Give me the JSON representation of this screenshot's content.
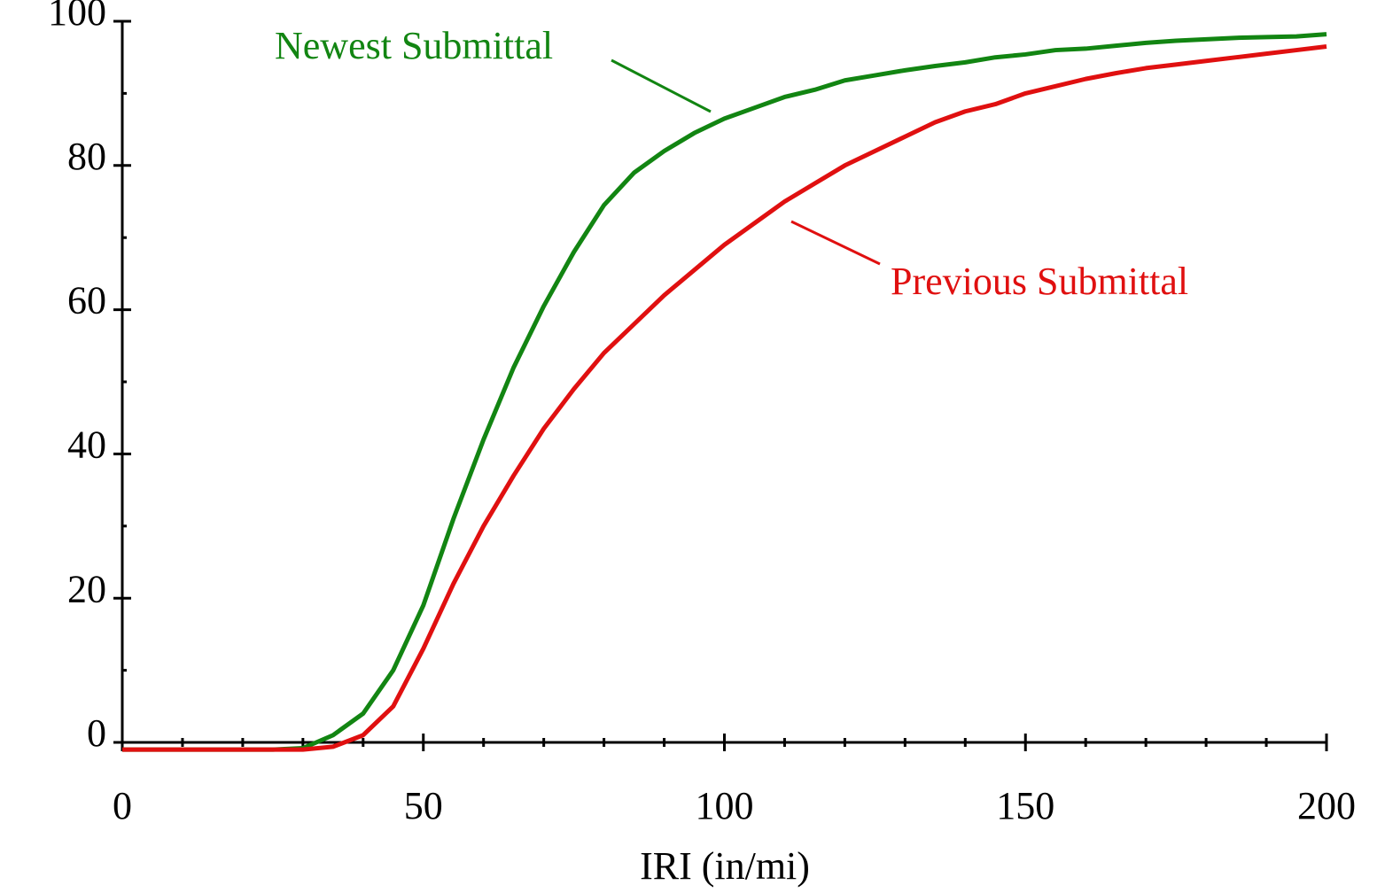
{
  "chart_data": {
    "type": "line",
    "x_label": "IRI (in/mi)",
    "x": [
      0,
      5,
      10,
      15,
      20,
      25,
      30,
      35,
      40,
      45,
      50,
      55,
      60,
      65,
      70,
      75,
      80,
      85,
      90,
      95,
      100,
      105,
      110,
      115,
      120,
      125,
      130,
      135,
      140,
      145,
      150,
      155,
      160,
      165,
      170,
      175,
      180,
      185,
      190,
      195,
      200
    ],
    "series": [
      {
        "name": "Newest Submittal",
        "color": "#128512",
        "values": [
          -1,
          -1,
          -1,
          -1,
          -1,
          -1,
          -0.8,
          1,
          4,
          10,
          19,
          31,
          42,
          52,
          60.5,
          68,
          74.5,
          79,
          82,
          84.5,
          86.5,
          88,
          89.5,
          90.5,
          91.8,
          92.5,
          93.2,
          93.8,
          94.3,
          95,
          95.4,
          96,
          96.2,
          96.6,
          97,
          97.3,
          97.5,
          97.7,
          97.8,
          97.9,
          98.2
        ]
      },
      {
        "name": "Previous Submittal",
        "color": "#e01010",
        "values": [
          -1,
          -1,
          -1,
          -1,
          -1,
          -1,
          -1,
          -0.6,
          1,
          5,
          13,
          22,
          30,
          37,
          43.5,
          49,
          54,
          58,
          62,
          65.5,
          69,
          72,
          75,
          77.5,
          80,
          82,
          84,
          86,
          87.5,
          88.5,
          90,
          91,
          92,
          92.8,
          93.5,
          94,
          94.5,
          95,
          95.5,
          96,
          96.5
        ]
      }
    ],
    "xlim": [
      0,
      200
    ],
    "xticks": [
      0,
      50,
      100,
      150,
      200
    ],
    "xminorticks": [
      10,
      20,
      30,
      40,
      60,
      70,
      80,
      90,
      110,
      120,
      130,
      140,
      160,
      170,
      180,
      190
    ],
    "ylim": [
      0,
      100
    ],
    "yticks": [
      0,
      20,
      40,
      60,
      80,
      100
    ],
    "yminorticks": [
      10,
      30,
      50,
      70,
      90
    ],
    "grid": false
  }
}
